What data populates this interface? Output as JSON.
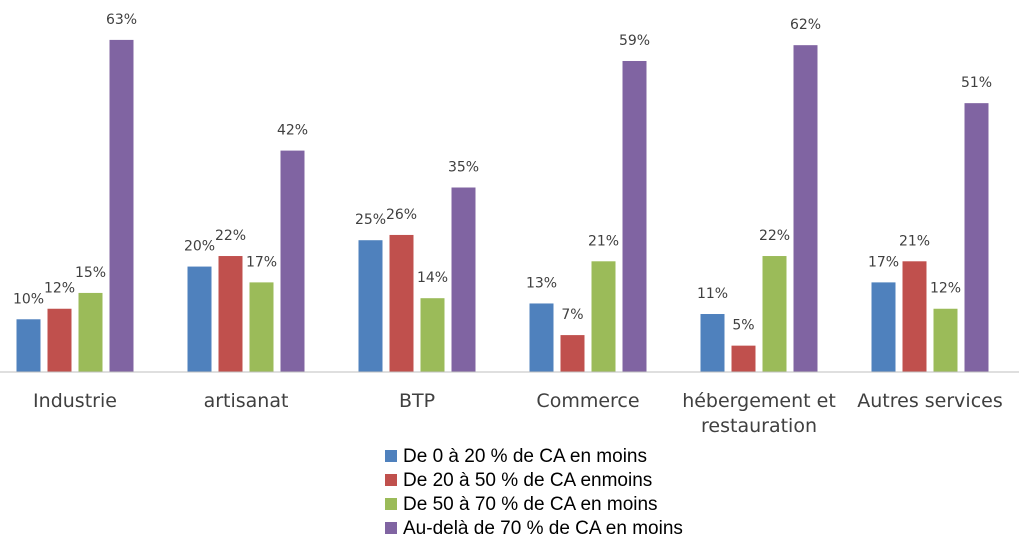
{
  "chart_data": {
    "type": "bar",
    "categories": [
      "Industrie",
      "artisanat",
      "BTP",
      "Commerce",
      "hébergement et restauration",
      "Autres services"
    ],
    "series": [
      {
        "name": "De 0 à 20 % de CA en moins",
        "color": "#4f81bd",
        "values": [
          10,
          20,
          25,
          13,
          11,
          17
        ],
        "value_labels": [
          "10%",
          "20%",
          "25%",
          "13%",
          "11%",
          "17%"
        ]
      },
      {
        "name": "De 20 à 50 % de CA enmoins",
        "color": "#c0504d",
        "values": [
          12,
          22,
          26,
          7,
          5,
          21
        ],
        "value_labels": [
          "12%",
          "22%",
          "26%",
          "7%",
          "5%",
          "21%"
        ]
      },
      {
        "name": "De 50 à 70 % de CA en moins",
        "color": "#9bbb59",
        "values": [
          15,
          17,
          14,
          21,
          22,
          12
        ],
        "value_labels": [
          "15%",
          "17%",
          "14%",
          "21%",
          "22%",
          "12%"
        ]
      },
      {
        "name": "Au-delà de 70 % de CA en moins",
        "color": "#8064a2",
        "values": [
          63,
          42,
          35,
          59,
          62,
          51
        ],
        "value_labels": [
          "63%",
          "42%",
          "35%",
          "59%",
          "62%",
          "51%"
        ]
      }
    ],
    "ylim": [
      0,
      70
    ]
  }
}
